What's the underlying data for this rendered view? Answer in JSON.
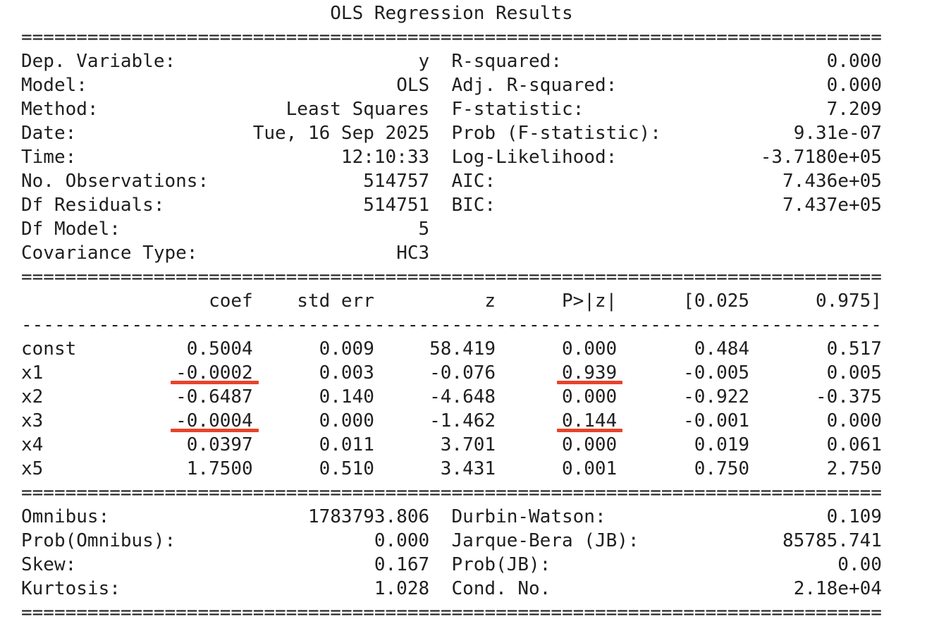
{
  "title": "OLS Regression Results",
  "rules": {
    "double": "==============================================================================",
    "single": "------------------------------------------------------------------------------"
  },
  "info_top": [
    {
      "ll": "Dep. Variable:",
      "lv": "y",
      "rl": "R-squared:",
      "rv": "0.000"
    },
    {
      "ll": "Model:",
      "lv": "OLS",
      "rl": "Adj. R-squared:",
      "rv": "0.000"
    },
    {
      "ll": "Method:",
      "lv": "Least Squares",
      "rl": "F-statistic:",
      "rv": "7.209"
    },
    {
      "ll": "Date:",
      "lv": "Tue, 16 Sep 2025",
      "rl": "Prob (F-statistic):",
      "rv": "9.31e-07"
    },
    {
      "ll": "Time:",
      "lv": "12:10:33",
      "rl": "Log-Likelihood:",
      "rv": "-3.7180e+05"
    },
    {
      "ll": "No. Observations:",
      "lv": "514757",
      "rl": "AIC:",
      "rv": "7.436e+05"
    },
    {
      "ll": "Df Residuals:",
      "lv": "514751",
      "rl": "BIC:",
      "rv": "7.437e+05"
    },
    {
      "ll": "Df Model:",
      "lv": "5",
      "rl": "",
      "rv": ""
    },
    {
      "ll": "Covariance Type:",
      "lv": "HC3",
      "rl": "",
      "rv": ""
    }
  ],
  "coef_table": {
    "headers": {
      "name": "",
      "coef": "coef",
      "std_err": "std err",
      "z": "z",
      "p": "P>|z|",
      "ci_low": "[0.025",
      "ci_high": "0.975]"
    },
    "rows": [
      {
        "name": "const",
        "coef": "0.5004",
        "std_err": "0.009",
        "z": "58.419",
        "p": "0.000",
        "ci_low": "0.484",
        "ci_high": "0.517"
      },
      {
        "name": "x1",
        "coef": "-0.0002",
        "std_err": "0.003",
        "z": "-0.076",
        "p": "0.939",
        "ci_low": "-0.005",
        "ci_high": "0.005"
      },
      {
        "name": "x2",
        "coef": "-0.6487",
        "std_err": "0.140",
        "z": "-4.648",
        "p": "0.000",
        "ci_low": "-0.922",
        "ci_high": "-0.375"
      },
      {
        "name": "x3",
        "coef": "-0.0004",
        "std_err": "0.000",
        "z": "-1.462",
        "p": "0.144",
        "ci_low": "-0.001",
        "ci_high": "0.000"
      },
      {
        "name": "x4",
        "coef": "0.0397",
        "std_err": "0.011",
        "z": "3.701",
        "p": "0.000",
        "ci_low": "0.019",
        "ci_high": "0.061"
      },
      {
        "name": "x5",
        "coef": "1.7500",
        "std_err": "0.510",
        "z": "3.431",
        "p": "0.001",
        "ci_low": "0.750",
        "ci_high": "2.750"
      }
    ]
  },
  "diagnostics": [
    {
      "ll": "Omnibus:",
      "lv": "1783793.806",
      "rl": "Durbin-Watson:",
      "rv": "0.109"
    },
    {
      "ll": "Prob(Omnibus):",
      "lv": "0.000",
      "rl": "Jarque-Bera (JB):",
      "rv": "85785.741"
    },
    {
      "ll": "Skew:",
      "lv": "0.167",
      "rl": "Prob(JB):",
      "rv": "0.00"
    },
    {
      "ll": "Kurtosis:",
      "lv": "1.028",
      "rl": "Cond. No.",
      "rv": "2.18e+04"
    }
  ],
  "annotations": {
    "underline_color": "#e8432a",
    "underlined_cells": [
      "x1.coef",
      "x1.p",
      "x3.coef",
      "x3.p"
    ]
  }
}
